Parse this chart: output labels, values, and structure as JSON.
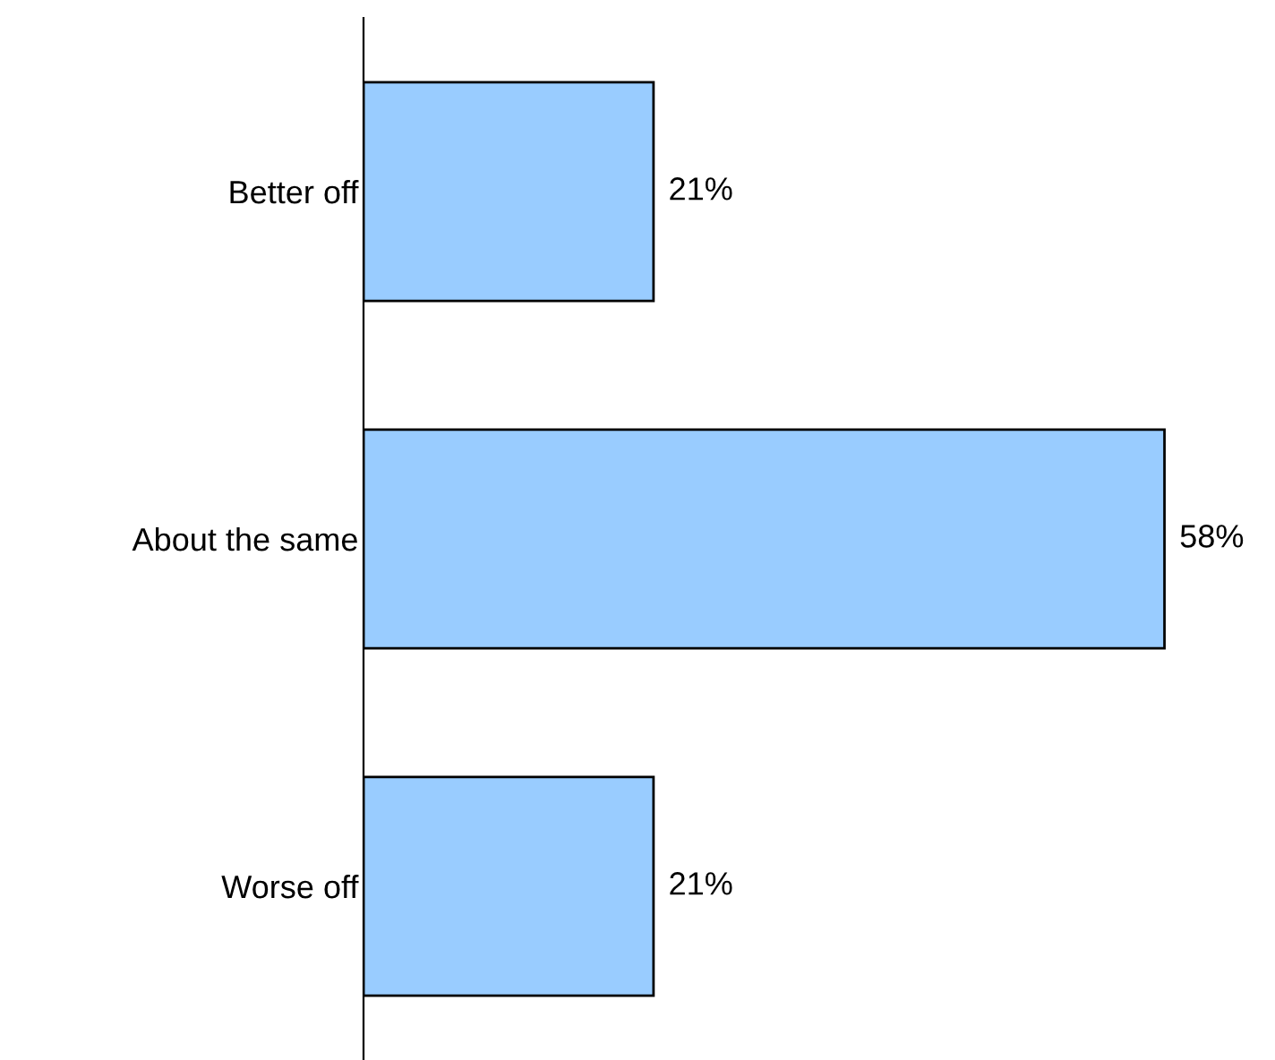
{
  "chart_data": {
    "type": "bar",
    "orientation": "horizontal",
    "categories": [
      "Better off",
      "About the same",
      "Worse off"
    ],
    "values": [
      21,
      58,
      21
    ],
    "color": "#99ccff",
    "value_labels": [
      "21%",
      "58%",
      "21%"
    ],
    "grid": false,
    "legend": false
  }
}
